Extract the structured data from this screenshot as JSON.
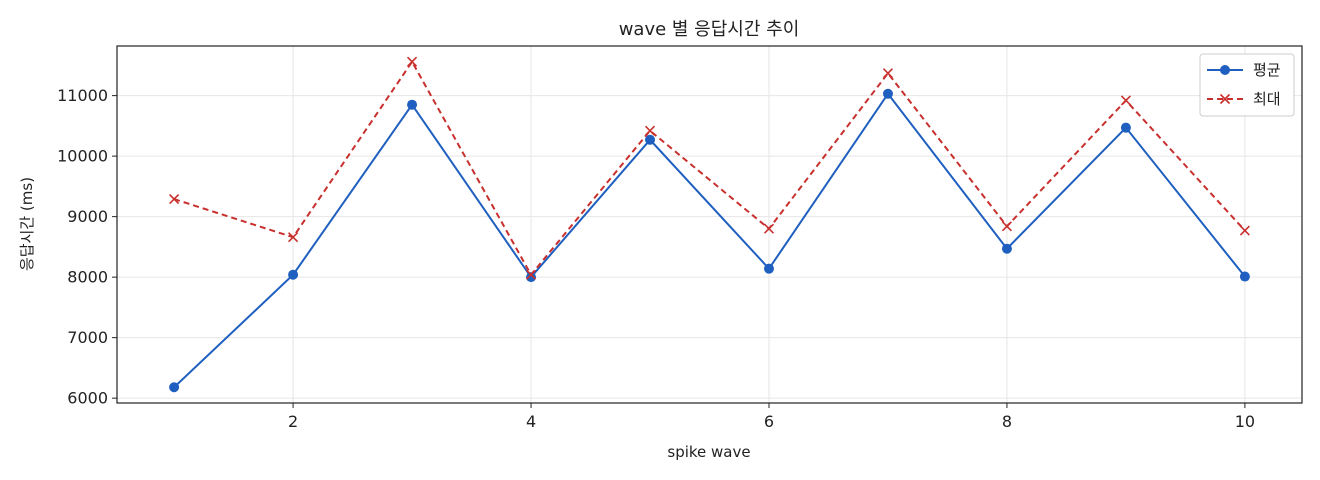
{
  "chart_data": {
    "type": "line",
    "title": "wave 별 응답시간 추이",
    "xlabel": "spike wave",
    "ylabel": "응답시간 (ms)",
    "x": [
      1,
      2,
      3,
      4,
      5,
      6,
      7,
      8,
      9,
      10
    ],
    "xlim": [
      0.52,
      10.48
    ],
    "ylim": [
      5920,
      11820
    ],
    "xticks": [
      2,
      4,
      6,
      8,
      10
    ],
    "yticks": [
      6000,
      7000,
      8000,
      9000,
      10000,
      11000
    ],
    "grid": true,
    "legend_position": "top-right",
    "series": [
      {
        "name": "평균",
        "color": "#1f5fbf",
        "style": "solid",
        "marker": "circle",
        "values": [
          6180,
          8040,
          10850,
          8000,
          10270,
          8140,
          11030,
          8470,
          10470,
          8010
        ]
      },
      {
        "name": "최대",
        "color": "#c8302e",
        "style": "dashed",
        "marker": "x",
        "values": [
          9290,
          8660,
          11560,
          8040,
          10420,
          8800,
          11370,
          8840,
          10920,
          8770
        ]
      }
    ]
  }
}
